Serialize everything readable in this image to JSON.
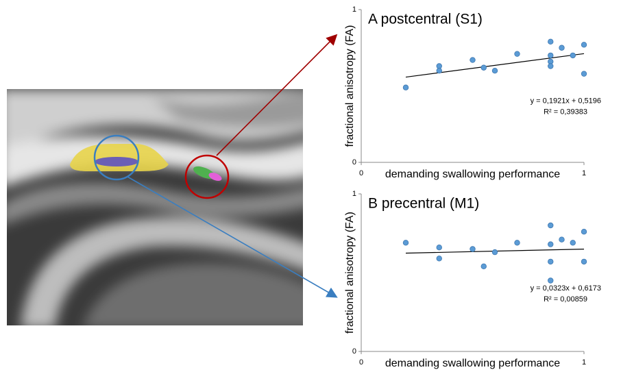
{
  "chart_data": [
    {
      "type": "scatter",
      "title": "A  postcentral (S1)",
      "x_label": "demanding swallowing performance",
      "y_label": "fractional anisotropy (FA)",
      "x": [
        0.2,
        0.35,
        0.35,
        0.5,
        0.55,
        0.6,
        0.7,
        0.85,
        0.85,
        0.85,
        0.85,
        0.9,
        0.95,
        1,
        1
      ],
      "values": [
        0.49,
        0.63,
        0.6,
        0.67,
        0.62,
        0.6,
        0.71,
        0.79,
        0.7,
        0.66,
        0.63,
        0.75,
        0.7,
        0.77,
        0.58
      ],
      "color": "#5b9bd5",
      "xlim": [
        0,
        1
      ],
      "ylim": [
        0,
        1
      ],
      "xticks": [
        0,
        1
      ],
      "yticks": [
        0,
        1
      ],
      "trendline": {
        "slope": 0.1921,
        "intercept": 0.5196,
        "label": "y = 0,1921x + 0,5196",
        "r2_label": "R² = 0,39383"
      }
    },
    {
      "type": "scatter",
      "title": "B  precentral (M1)",
      "x_label": "demanding swallowing performance",
      "y_label": "fractional anisotropy (FA)",
      "x": [
        0.2,
        0.35,
        0.35,
        0.5,
        0.55,
        0.6,
        0.7,
        0.85,
        0.85,
        0.85,
        0.85,
        0.9,
        0.95,
        1,
        1
      ],
      "values": [
        0.69,
        0.66,
        0.59,
        0.65,
        0.54,
        0.63,
        0.69,
        0.8,
        0.68,
        0.57,
        0.45,
        0.71,
        0.69,
        0.76,
        0.57
      ],
      "color": "#5b9bd5",
      "xlim": [
        0,
        1
      ],
      "ylim": [
        0,
        1
      ],
      "xticks": [
        0,
        1
      ],
      "yticks": [
        0,
        1
      ],
      "trendline": {
        "slope": 0.0323,
        "intercept": 0.6173,
        "label": "y = 0,0323x + 0,6173",
        "r2_label": "R² = 0,00859"
      }
    }
  ]
}
